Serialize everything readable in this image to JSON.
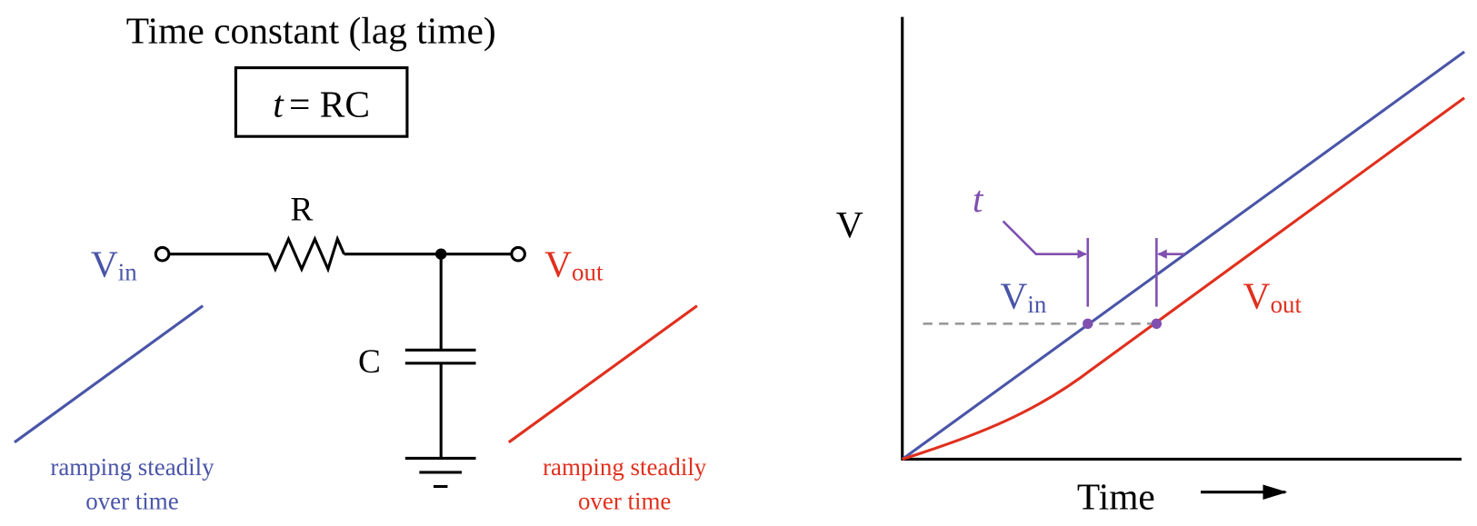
{
  "title": "Time constant (lag time)",
  "formula": {
    "variable": "t",
    "rest": "= RC"
  },
  "circuit": {
    "resistor_label": "R",
    "capacitor_label": "C",
    "input": {
      "main": "V",
      "sub": "in"
    },
    "output": {
      "main": "V",
      "sub": "out"
    },
    "input_note": [
      "ramping steadily",
      "over time"
    ],
    "output_note": [
      "ramping steadily",
      "over time"
    ]
  },
  "graph": {
    "y_axis_label": "V",
    "x_axis_label": "Time",
    "lag_label": "t",
    "input": {
      "main": "V",
      "sub": "in"
    },
    "output": {
      "main": "V",
      "sub": "out"
    }
  }
}
